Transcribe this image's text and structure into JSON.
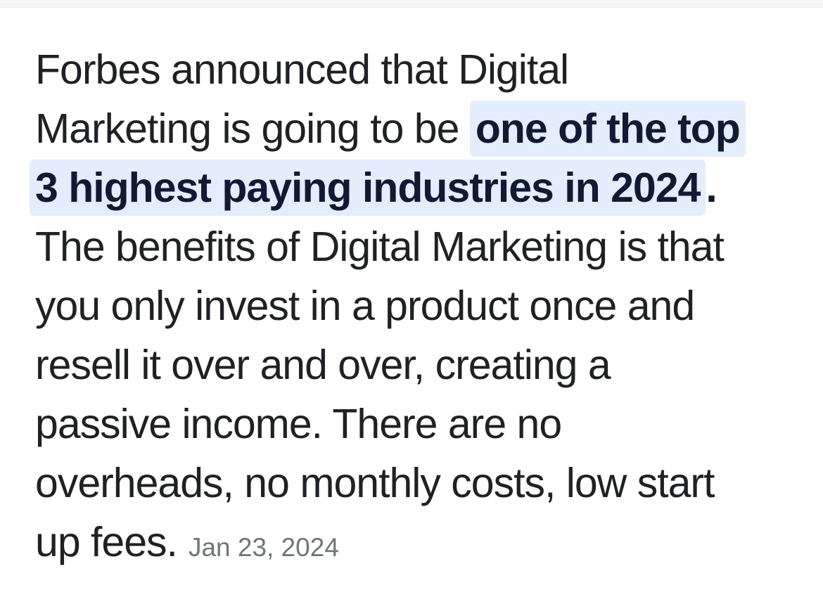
{
  "page": {
    "background_color": "#ffffff",
    "top_bar_color": "#f6f6f7"
  },
  "snippet": {
    "text_color": "#202124",
    "highlight_bg_color": "#e3edfb",
    "highlight_text_color": "#101a33",
    "date_color": "#70757a",
    "highlighted_phrase": "one of the top 3 highest paying industries in 2024",
    "lines": {
      "l1": "Forbes announced that Digital",
      "l2_regular": "Marketing is going to be ",
      "l2_highlight": "one of the top",
      "l3_highlight": "3 highest paying industries in 2024",
      "l3_after": ".",
      "l4": "The benefits of Digital Marketing is that",
      "l5": "you only invest in a product once and",
      "l6": "resell it over and over, creating a",
      "l7": "passive income. There are no",
      "l8": "overheads, no monthly costs, low start",
      "l9": "up fees.",
      "date": "Jan 23, 2024"
    }
  }
}
